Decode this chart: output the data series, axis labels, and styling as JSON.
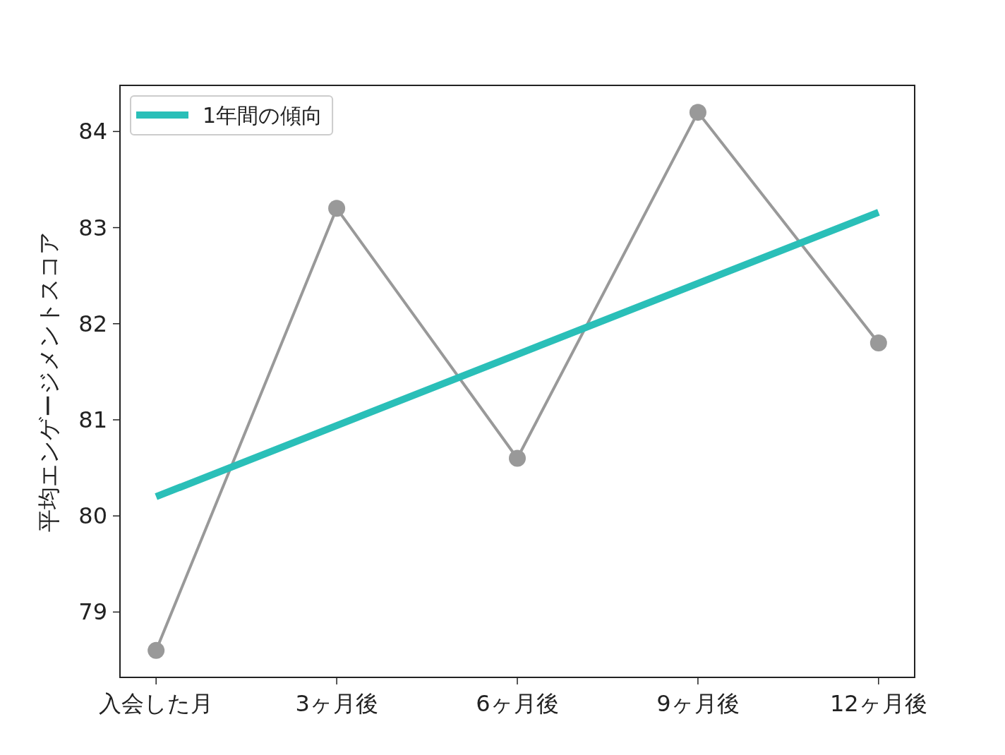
{
  "chart_data": {
    "type": "line",
    "ylabel": "平均エンゲージメントスコア",
    "categories": [
      "入会した月",
      "3ヶ月後",
      "6ヶ月後",
      "9ヶ月後",
      "12ヶ月後"
    ],
    "series": [
      {
        "color": "#999999",
        "values": [
          78.6,
          83.2,
          80.6,
          84.2,
          81.8
        ],
        "marker": "circle"
      },
      {
        "name": "1年間の傾向",
        "color": "#2abfb8",
        "values": [
          80.2,
          80.94,
          81.68,
          82.42,
          83.16
        ],
        "marker": "none"
      }
    ],
    "ylim": [
      78.32,
      84.48
    ],
    "yticks": [
      79,
      80,
      81,
      82,
      83,
      84
    ],
    "grid": false,
    "legend": "top left"
  }
}
